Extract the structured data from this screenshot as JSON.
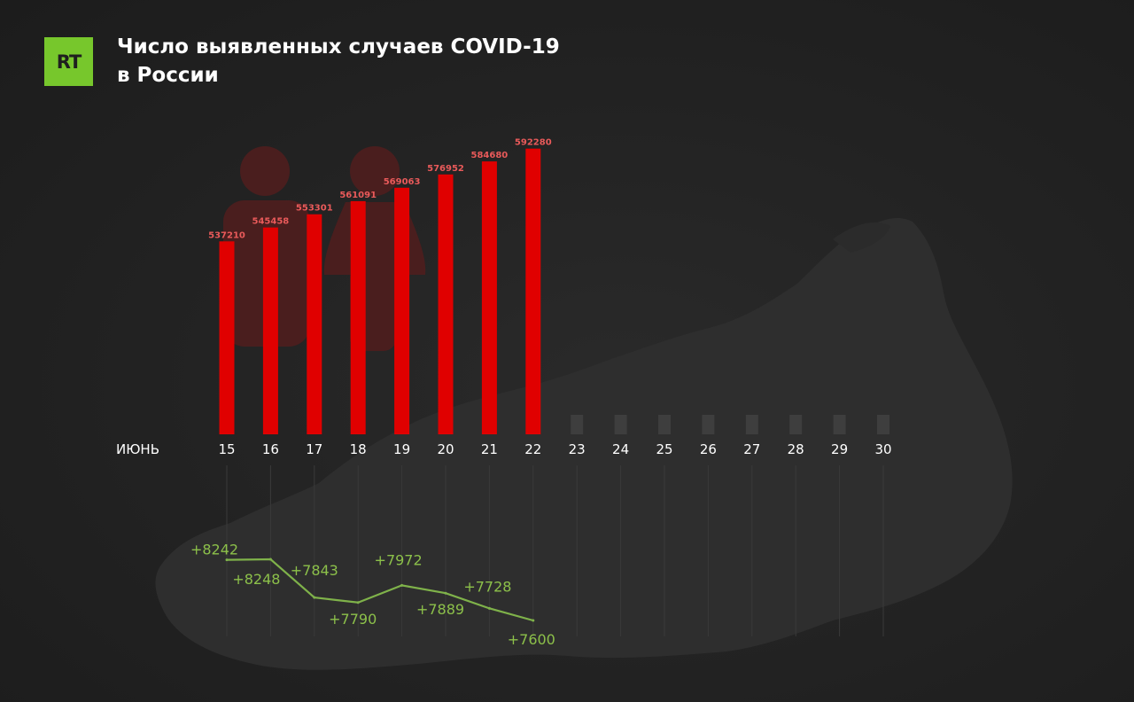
{
  "logo": {
    "text": "RT"
  },
  "title": {
    "line1": "Число выявленных случаев COVID-19",
    "line2": "в России"
  },
  "colors": {
    "bar": "#e00000",
    "placeholder": "#3e3e3e",
    "line": "#7fb24a",
    "value_label": "#e95a5a",
    "brand": "#77c72c"
  },
  "chart_data": {
    "type": "bar",
    "month_label": "ИЮНЬ",
    "days": [
      "15",
      "16",
      "17",
      "18",
      "19",
      "20",
      "21",
      "22",
      "23",
      "24",
      "25",
      "26",
      "27",
      "28",
      "29",
      "30"
    ],
    "cumulative": [
      537210,
      545458,
      553301,
      561091,
      569063,
      576952,
      584680,
      592280
    ],
    "cumulative_labels": [
      "537210",
      "545458",
      "553301",
      "561091",
      "569063",
      "576952",
      "584680",
      "592280"
    ],
    "daily_increase": [
      8242,
      8248,
      7843,
      7790,
      7972,
      7889,
      7728,
      7600
    ],
    "daily_labels": [
      "+8242",
      "+8248",
      "+7843",
      "+7790",
      "+7972",
      "+7889",
      "+7728",
      "+7600"
    ]
  }
}
